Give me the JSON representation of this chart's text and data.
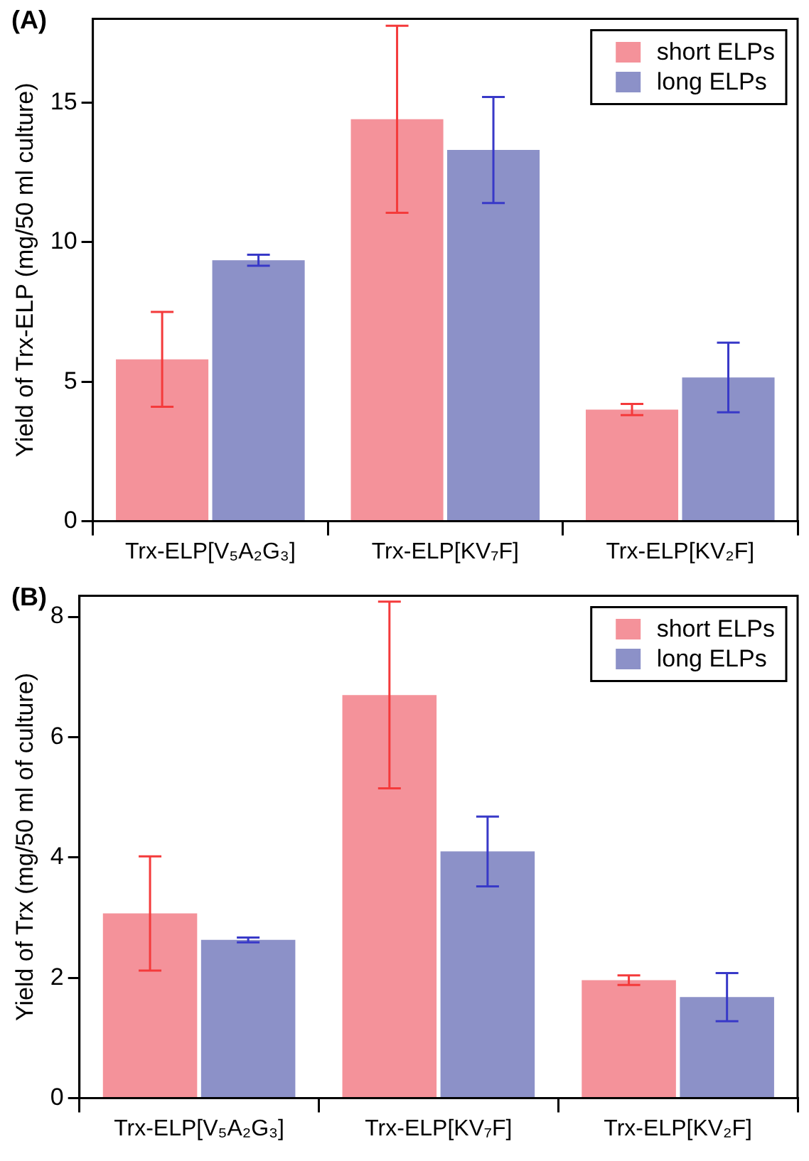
{
  "chart_data": [
    {
      "type": "bar",
      "title": "(A)",
      "ylabel": "Yield of Trx-ELP (mg/50 ml culture)",
      "categories": [
        "Trx-ELP[V₅A₂G₃]",
        "Trx-ELP[KV₇F]",
        "Trx-ELP[KV₂F]"
      ],
      "series": [
        {
          "name": "short ELPs",
          "color": "#f4929a",
          "values": [
            5.8,
            14.4,
            4.0
          ],
          "errors": [
            1.7,
            3.35,
            0.2
          ]
        },
        {
          "name": "long ELPs",
          "color": "#8c91c8",
          "values": [
            9.35,
            13.3,
            5.15
          ],
          "errors": [
            0.2,
            1.9,
            1.25
          ]
        }
      ],
      "ylim": [
        0,
        18
      ],
      "yticks": [
        0,
        5,
        10,
        15
      ],
      "grid": false,
      "legend": "top right"
    },
    {
      "type": "bar",
      "title": "(B)",
      "ylabel": "Yield of Trx (mg/50 ml of culture)",
      "categories": [
        "Trx-ELP[V₅A₂G₃]",
        "Trx-ELP[KV₇F]",
        "Trx-ELP[KV₂F]"
      ],
      "series": [
        {
          "name": "short ELPs",
          "color": "#f4929a",
          "values": [
            3.07,
            6.7,
            1.96
          ],
          "errors": [
            0.95,
            1.55,
            0.08
          ]
        },
        {
          "name": "long ELPs",
          "color": "#8c91c8",
          "values": [
            2.63,
            4.1,
            1.68
          ],
          "errors": [
            0.04,
            0.58,
            0.4
          ]
        }
      ],
      "ylim": [
        0,
        8.35
      ],
      "yticks": [
        0,
        2,
        4,
        6,
        8
      ],
      "grid": false,
      "legend": "top right"
    }
  ]
}
